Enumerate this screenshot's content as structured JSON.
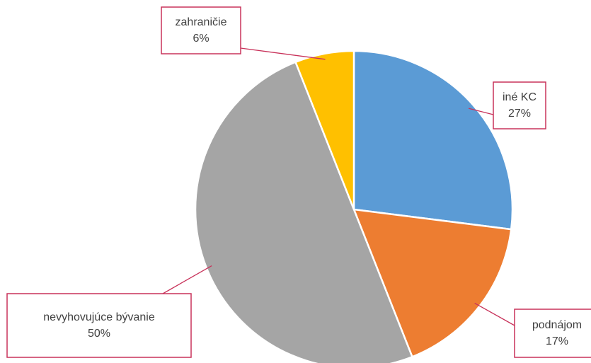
{
  "chart_data": {
    "type": "pie",
    "categories": [
      "iné KC",
      "podnájom",
      "nevyhovujúce bývanie",
      "zahraničie"
    ],
    "values": [
      27,
      17,
      50,
      6
    ],
    "value_labels": [
      "27%",
      "17%",
      "50%",
      "6%"
    ],
    "colors": [
      "#5b9bd5",
      "#ed7d31",
      "#a5a5a5",
      "#ffc000"
    ]
  }
}
